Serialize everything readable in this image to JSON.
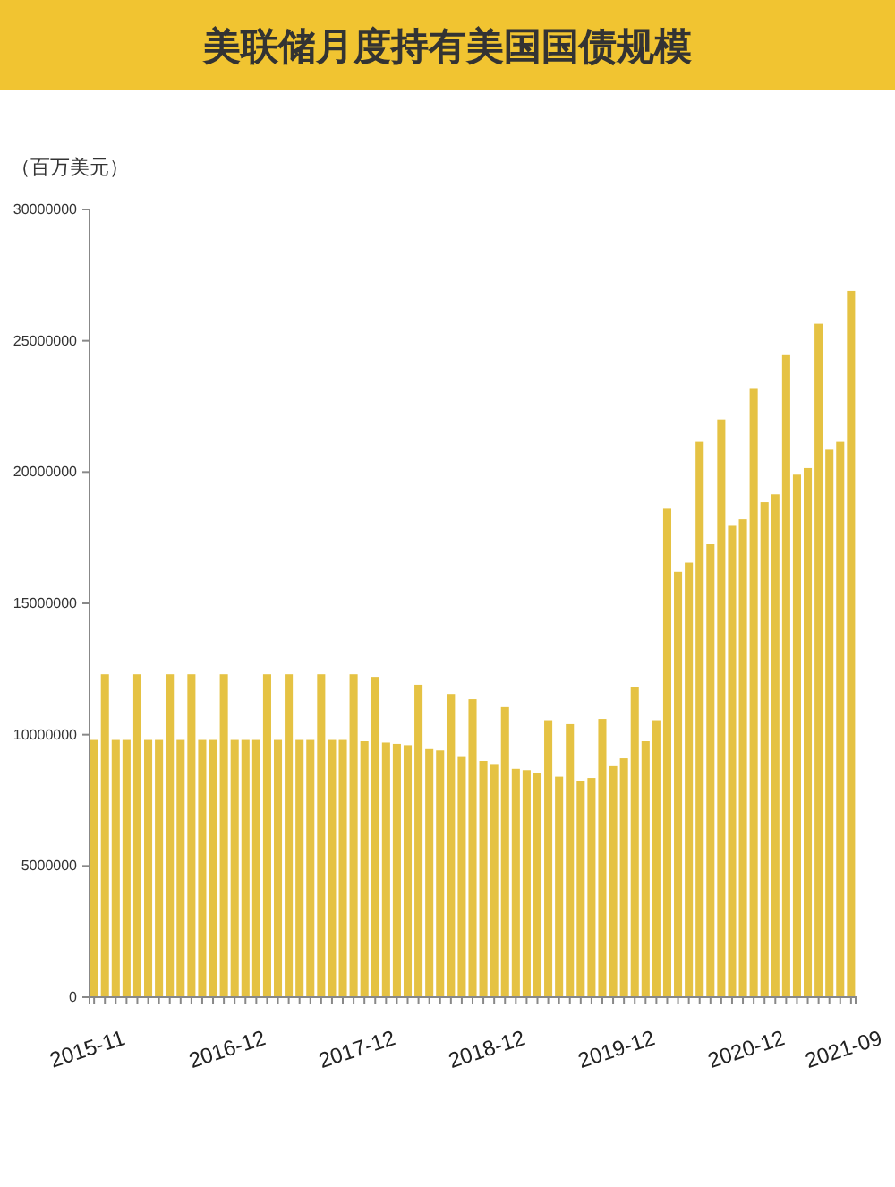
{
  "chart_data": {
    "type": "bar",
    "title": "美联储月度持有美国国债规模",
    "ylabel": "（百万美元）",
    "categories": [
      "2015-11",
      null,
      null,
      null,
      null,
      null,
      null,
      null,
      null,
      null,
      null,
      null,
      null,
      "2016-12",
      null,
      null,
      null,
      null,
      null,
      null,
      null,
      null,
      null,
      null,
      null,
      "2017-12",
      null,
      null,
      null,
      null,
      null,
      null,
      null,
      null,
      null,
      null,
      null,
      "2018-12",
      null,
      null,
      null,
      null,
      null,
      null,
      null,
      null,
      null,
      null,
      null,
      "2019-12",
      null,
      null,
      null,
      null,
      null,
      null,
      null,
      null,
      null,
      null,
      null,
      "2020-12",
      null,
      null,
      null,
      null,
      null,
      null,
      null,
      null,
      "2021-09"
    ],
    "values": [
      9800000,
      12300000,
      9800000,
      9800000,
      12300000,
      9800000,
      9800000,
      12300000,
      9800000,
      12300000,
      9800000,
      9800000,
      12300000,
      9800000,
      9800000,
      9800000,
      12300000,
      9800000,
      12300000,
      9800000,
      9800000,
      12300000,
      9800000,
      9800000,
      12300000,
      9750000,
      12200000,
      9700000,
      9650000,
      9600000,
      11900000,
      9450000,
      9400000,
      11550000,
      9150000,
      11350000,
      9000000,
      8850000,
      11050000,
      8700000,
      8650000,
      8550000,
      10550000,
      8400000,
      10400000,
      8250000,
      8350000,
      10600000,
      8800000,
      9100000,
      11800000,
      9750000,
      10550000,
      18600000,
      16200000,
      16550000,
      21150000,
      17250000,
      22000000,
      17950000,
      18200000,
      23200000,
      18850000,
      19150000,
      24450000,
      19900000,
      20150000,
      25650000,
      20850000,
      21150000,
      26900000
    ],
    "color": "#e5c243",
    "ylim": [
      0,
      30000000
    ],
    "yticks": [
      0,
      5000000,
      10000000,
      15000000,
      20000000,
      25000000,
      30000000
    ],
    "grid": false
  }
}
